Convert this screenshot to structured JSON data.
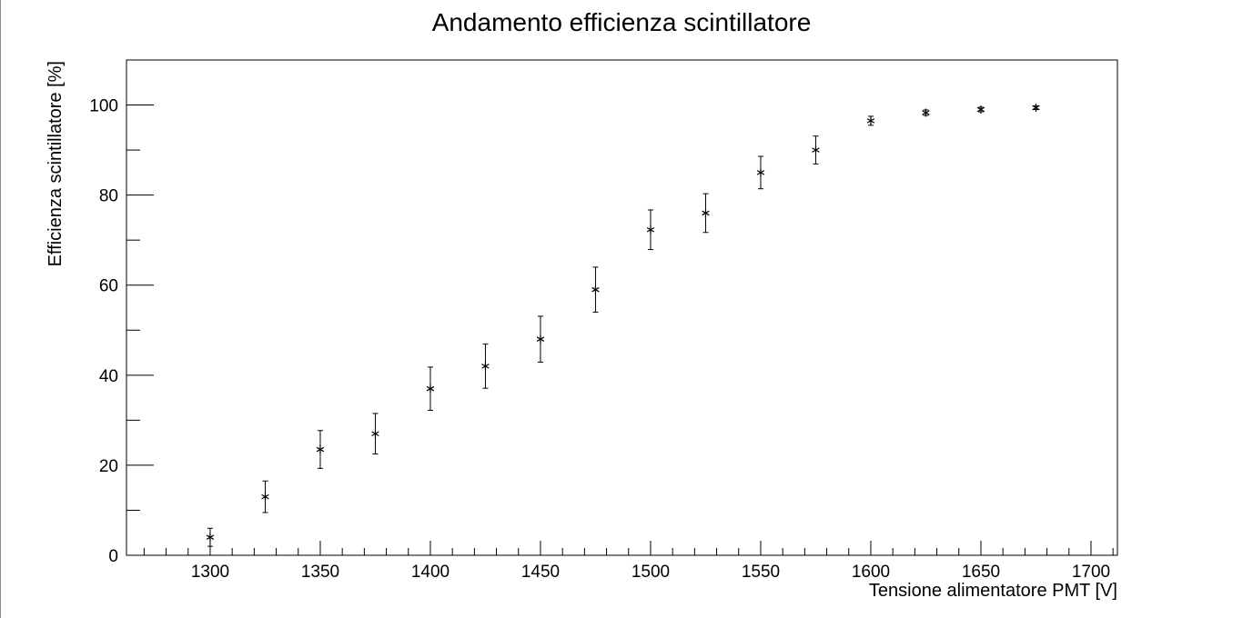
{
  "chart_data": {
    "type": "scatter",
    "title": "Andamento efficienza scintillatore",
    "xlabel": "Tensione alimentatore PMT [V]",
    "ylabel": "Efficienza scintillatore [%]",
    "xlim": [
      1262,
      1712
    ],
    "ylim": [
      0,
      110
    ],
    "x_ticks": [
      1300,
      1350,
      1400,
      1450,
      1500,
      1550,
      1600,
      1650,
      1700
    ],
    "y_ticks": [
      0,
      20,
      40,
      60,
      80,
      100
    ],
    "grid": false,
    "marker": "star",
    "points": [
      {
        "x": 1300,
        "y": 4,
        "err": 2
      },
      {
        "x": 1325,
        "y": 13,
        "err": 3.5
      },
      {
        "x": 1350,
        "y": 23.5,
        "err": 4.2
      },
      {
        "x": 1375,
        "y": 27,
        "err": 4.5
      },
      {
        "x": 1400,
        "y": 37,
        "err": 4.8
      },
      {
        "x": 1425,
        "y": 42,
        "err": 4.9
      },
      {
        "x": 1450,
        "y": 48,
        "err": 5.1
      },
      {
        "x": 1475,
        "y": 59,
        "err": 5
      },
      {
        "x": 1500,
        "y": 72.3,
        "err": 4.4
      },
      {
        "x": 1525,
        "y": 76,
        "err": 4.3
      },
      {
        "x": 1550,
        "y": 85,
        "err": 3.6
      },
      {
        "x": 1575,
        "y": 90,
        "err": 3.1
      },
      {
        "x": 1600,
        "y": 96.5,
        "err": 1
      },
      {
        "x": 1625,
        "y": 98.3,
        "err": 0.6
      },
      {
        "x": 1650,
        "y": 99,
        "err": 0.5
      },
      {
        "x": 1675,
        "y": 99.4,
        "err": 0.4
      }
    ]
  }
}
